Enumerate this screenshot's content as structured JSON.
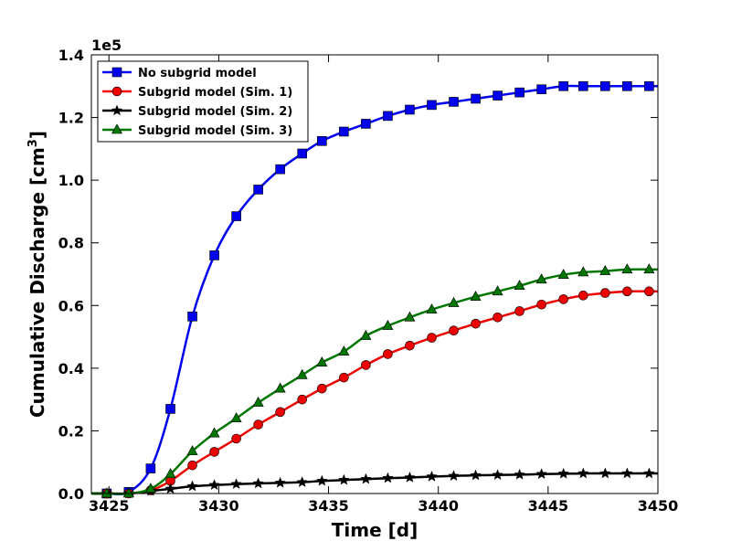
{
  "chart_data": {
    "type": "line",
    "xlabel": "Time [d]",
    "ylabel": "Cumulative Discharge [cm",
    "ylabel_sup": "3",
    "ylabel_close": "]",
    "y_scale_label": "1e5",
    "xlim": [
      3424.2,
      3450
    ],
    "ylim": [
      0,
      140000
    ],
    "xticks": [
      3425,
      3430,
      3435,
      3440,
      3445,
      3450
    ],
    "xtick_labels": [
      "3425",
      "3430",
      "3435",
      "3440",
      "3445",
      "3450"
    ],
    "yticks": [
      0,
      20000,
      40000,
      60000,
      80000,
      100000,
      120000,
      140000
    ],
    "ytick_labels": [
      "0.0",
      "0.2",
      "0.4",
      "0.6",
      "0.8",
      "1.0",
      "1.2",
      "1.4"
    ],
    "grid": false,
    "legend_position": "top-left",
    "x": [
      3424.9,
      3425.9,
      3426.9,
      3427.8,
      3428.8,
      3429.8,
      3430.8,
      3431.8,
      3432.8,
      3433.8,
      3434.7,
      3435.7,
      3436.7,
      3437.7,
      3438.7,
      3439.7,
      3440.7,
      3441.7,
      3442.7,
      3443.7,
      3444.7,
      3445.7,
      3446.6,
      3447.6,
      3448.6,
      3449.6
    ],
    "series": [
      {
        "name": "No subgrid model",
        "color": "#0000ee",
        "marker": "square",
        "values": [
          0,
          500,
          8000,
          27000,
          56500,
          76000,
          88500,
          97000,
          103500,
          108500,
          112500,
          115500,
          118000,
          120500,
          122500,
          124000,
          125000,
          126000,
          127000,
          128000,
          129000,
          130000,
          130000,
          130000,
          130000,
          130000
        ]
      },
      {
        "name": "Subgrid model (Sim. 1)",
        "color": "#ee0000",
        "marker": "circle",
        "values": [
          0,
          0,
          1000,
          4000,
          9000,
          13300,
          17500,
          22000,
          26000,
          30000,
          33500,
          37000,
          41000,
          44500,
          47200,
          49700,
          52000,
          54200,
          56200,
          58200,
          60300,
          62000,
          63200,
          64000,
          64500,
          64500
        ]
      },
      {
        "name": "Subgrid model (Sim. 2)",
        "color": "#000000",
        "marker": "star",
        "values": [
          0,
          0,
          800,
          1500,
          2300,
          2700,
          3000,
          3200,
          3400,
          3600,
          4000,
          4300,
          4600,
          4900,
          5100,
          5400,
          5600,
          5800,
          5900,
          6000,
          6200,
          6300,
          6400,
          6400,
          6400,
          6400
        ]
      },
      {
        "name": "Subgrid model (Sim. 3)",
        "color": "#007700",
        "marker": "triangle",
        "values": [
          0,
          0,
          1500,
          6200,
          13500,
          19200,
          24000,
          29000,
          33500,
          37800,
          41800,
          45300,
          50300,
          53500,
          56200,
          58700,
          60800,
          62800,
          64500,
          66300,
          68300,
          69800,
          70600,
          71000,
          71500,
          71500
        ]
      }
    ]
  }
}
